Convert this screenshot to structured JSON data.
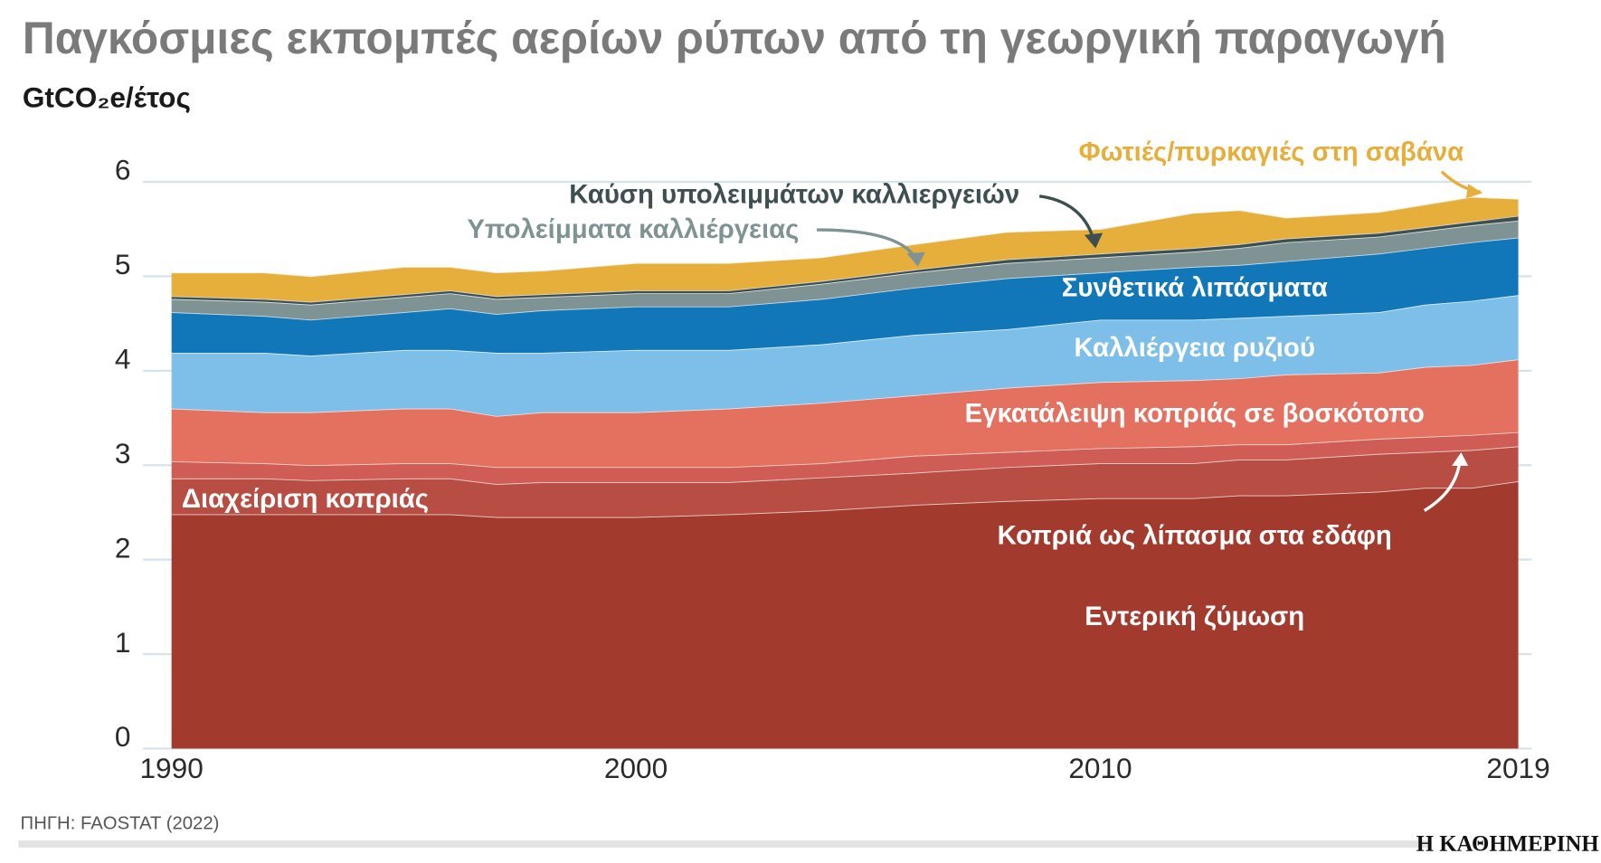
{
  "chart_data": {
    "type": "area",
    "stacked": true,
    "title": "Παγκόσμιες εκπομπές αερίων ρύπων από τη γεωργική παραγωγή",
    "ylabel": "GtCO₂e/έτος",
    "xlabel": "",
    "ylim": [
      0,
      6
    ],
    "xlim": [
      1990,
      2019
    ],
    "grid": true,
    "legend": "inline labels",
    "x_ticks": [
      "1990",
      "2000",
      "2010",
      "2019"
    ],
    "y_ticks": [
      "0",
      "1",
      "2",
      "3",
      "4",
      "5",
      "6"
    ],
    "x": [
      1990,
      1992,
      1993,
      1995,
      1996,
      1997,
      1998,
      2000,
      2002,
      2004,
      2006,
      2008,
      2010,
      2012,
      2013,
      2014,
      2016,
      2017,
      2018,
      2019
    ],
    "series": [
      {
        "name": "Εντερική ζύμωση",
        "color": "#a33a2e",
        "label_color": "#ffffff",
        "values": [
          2.48,
          2.48,
          2.48,
          2.48,
          2.48,
          2.45,
          2.45,
          2.45,
          2.48,
          2.52,
          2.58,
          2.62,
          2.65,
          2.65,
          2.68,
          2.68,
          2.72,
          2.76,
          2.76,
          2.83
        ]
      },
      {
        "name": "Κοπριά ως λίπασμα στα εδάφη",
        "color": "#b84d44",
        "label_color": "#ffffff",
        "values": [
          0.38,
          0.38,
          0.36,
          0.38,
          0.38,
          0.35,
          0.37,
          0.37,
          0.34,
          0.35,
          0.34,
          0.36,
          0.37,
          0.37,
          0.38,
          0.38,
          0.4,
          0.38,
          0.4,
          0.37
        ]
      },
      {
        "name": "Διαχείριση κοπριάς",
        "color": "#cf5d55",
        "label_color": "#ffffff",
        "values": [
          0.18,
          0.16,
          0.16,
          0.16,
          0.16,
          0.18,
          0.16,
          0.16,
          0.16,
          0.15,
          0.18,
          0.16,
          0.16,
          0.18,
          0.16,
          0.16,
          0.16,
          0.16,
          0.16,
          0.15
        ]
      },
      {
        "name": "Εγκατάλειψη κοπριάς σε βοσκότοπο",
        "color": "#e47060",
        "label_color": "#ffffff",
        "values": [
          0.56,
          0.54,
          0.56,
          0.58,
          0.58,
          0.54,
          0.58,
          0.58,
          0.62,
          0.64,
          0.64,
          0.68,
          0.7,
          0.7,
          0.7,
          0.74,
          0.7,
          0.74,
          0.74,
          0.77
        ]
      },
      {
        "name": "Καλλιέργεια ρυζιού",
        "color": "#7dbfe8",
        "label_color": "#ffffff",
        "values": [
          0.59,
          0.63,
          0.6,
          0.62,
          0.62,
          0.67,
          0.63,
          0.66,
          0.62,
          0.62,
          0.64,
          0.62,
          0.66,
          0.64,
          0.64,
          0.62,
          0.64,
          0.66,
          0.68,
          0.68
        ]
      },
      {
        "name": "Συνθετικά λιπάσματα",
        "color": "#1177b8",
        "label_color": "#ffffff",
        "values": [
          0.43,
          0.39,
          0.38,
          0.4,
          0.44,
          0.41,
          0.45,
          0.46,
          0.46,
          0.48,
          0.5,
          0.54,
          0.5,
          0.56,
          0.56,
          0.58,
          0.62,
          0.6,
          0.62,
          0.61
        ]
      },
      {
        "name": "Υπολείμματα καλλιέργειας",
        "color": "#7f9394",
        "label_color": "#7f9394",
        "values": [
          0.14,
          0.15,
          0.16,
          0.16,
          0.16,
          0.16,
          0.14,
          0.14,
          0.14,
          0.16,
          0.16,
          0.16,
          0.16,
          0.16,
          0.18,
          0.2,
          0.18,
          0.18,
          0.18,
          0.18
        ]
      },
      {
        "name": "Καύση υπολειμμάτων καλλιεργειών",
        "color": "#3d4f50",
        "label_color": "#3d4f50",
        "values": [
          0.03,
          0.03,
          0.03,
          0.03,
          0.03,
          0.03,
          0.03,
          0.03,
          0.03,
          0.03,
          0.03,
          0.04,
          0.04,
          0.04,
          0.04,
          0.04,
          0.04,
          0.04,
          0.04,
          0.05
        ]
      },
      {
        "name": "Φωτιές/πυρκαγιές στη σαβάνα",
        "color": "#e6ae3a",
        "label_color": "#e6ae3a",
        "values": [
          0.25,
          0.28,
          0.27,
          0.29,
          0.25,
          0.25,
          0.25,
          0.29,
          0.29,
          0.25,
          0.27,
          0.29,
          0.26,
          0.37,
          0.36,
          0.22,
          0.22,
          0.24,
          0.26,
          0.18
        ]
      }
    ]
  },
  "footer": {
    "source": "ΠΗΓΗ: FAOSTAT (2022)",
    "logo": "Η ΚΑΘΗΜΕΡΙΝΗ"
  }
}
